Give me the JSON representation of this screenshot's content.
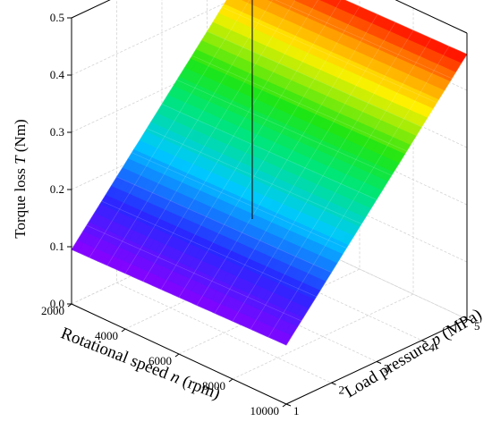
{
  "chart_data": {
    "type": "surface3d",
    "title": "",
    "xlabel": "Rotational speed n (rpm)",
    "ylabel": "Load pressure p (MPa)",
    "zlabel": "Torque loss T (Nm)",
    "x_axis": {
      "label_main": "Rotational speed ",
      "label_var": "n",
      "label_unit": " (rpm)",
      "ticks": [
        "2000",
        "4000",
        "6000",
        "8000",
        "10000"
      ],
      "range": [
        2000,
        10000
      ]
    },
    "y_axis": {
      "label_main": "Load pressure ",
      "label_var": "p",
      "label_unit": " (MPa)",
      "ticks": [
        "1",
        "2",
        "3",
        "4",
        "5"
      ],
      "range": [
        1,
        5
      ]
    },
    "z_axis": {
      "label_main": "Torque loss ",
      "label_var": "T",
      "label_unit": " (Nm)",
      "ticks": [
        "0.0",
        "0.1",
        "0.2",
        "0.3",
        "0.4",
        "0.5"
      ],
      "range": [
        0,
        0.5
      ]
    },
    "grid": true,
    "colormap": "rainbow",
    "surface_grid": {
      "x": [
        2000,
        4000,
        6000,
        8000,
        10000
      ],
      "y": [
        1,
        2,
        3,
        4,
        5
      ],
      "z": [
        [
          0.095,
          0.097,
          0.099,
          0.101,
          0.103
        ],
        [
          0.185,
          0.187,
          0.189,
          0.191,
          0.193
        ],
        [
          0.275,
          0.277,
          0.279,
          0.281,
          0.283
        ],
        [
          0.365,
          0.367,
          0.369,
          0.371,
          0.373
        ],
        [
          0.455,
          0.457,
          0.459,
          0.461,
          0.463
        ]
      ]
    }
  }
}
